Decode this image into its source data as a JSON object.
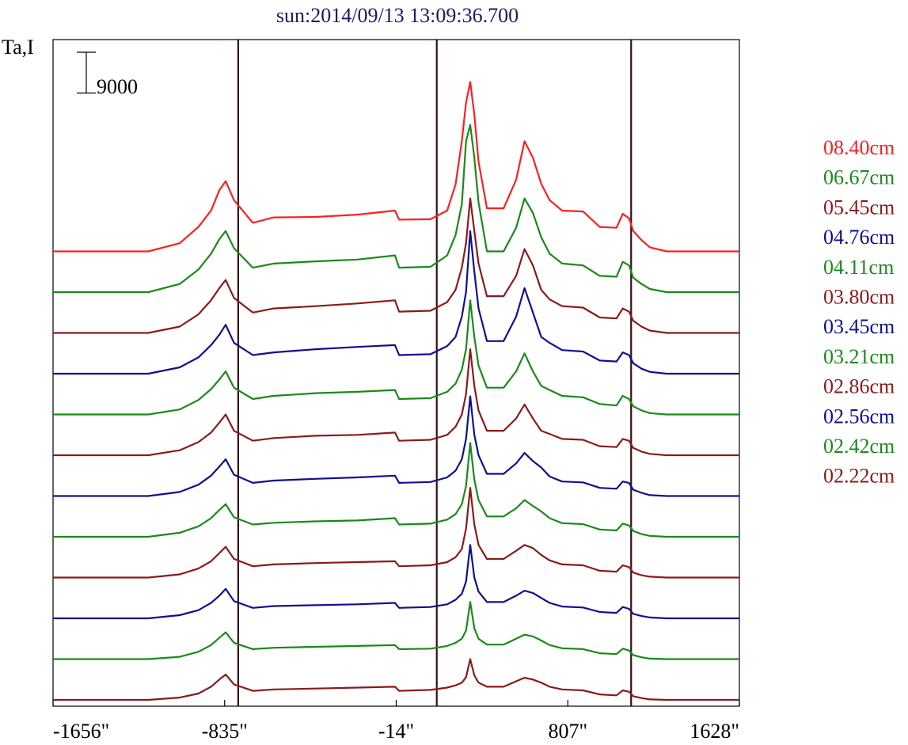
{
  "chart_data": {
    "type": "line",
    "title": "sun:2014/09/13 13:09:36.700",
    "ylabel": "Ta,I",
    "scale_bar": {
      "label": "9000",
      "value": 9000
    },
    "x_ticks": [
      {
        "value": -1656,
        "label": "-1656\""
      },
      {
        "value": -835,
        "label": "-835\""
      },
      {
        "value": -14,
        "label": "-14\""
      },
      {
        "value": 807,
        "label": "807\""
      },
      {
        "value": 1628,
        "label": "1628\""
      }
    ],
    "xlim": [
      -1656,
      1628
    ],
    "vertical_markers": [
      -770,
      180,
      1110
    ],
    "profile_x": [
      -1656,
      -1200,
      -1050,
      -960,
      -900,
      -860,
      -830,
      -790,
      -700,
      -600,
      -400,
      -200,
      -20,
      0,
      150,
      230,
      270,
      300,
      320,
      340,
      360,
      380,
      420,
      500,
      560,
      600,
      640,
      680,
      720,
      780,
      880,
      960,
      1040,
      1070,
      1100,
      1120,
      1160,
      1200,
      1280,
      1400,
      1628
    ],
    "series_offsets_step": 9000,
    "series": [
      {
        "name": "08.40cm",
        "color": "#ff1f1f",
        "y": [
          0,
          0,
          1800,
          5400,
          9000,
          13500,
          15500,
          11300,
          6300,
          7500,
          7600,
          8100,
          9000,
          7000,
          7100,
          9000,
          14800,
          24300,
          32800,
          37400,
          30200,
          19800,
          9500,
          9500,
          15800,
          24300,
          20700,
          14900,
          11300,
          9000,
          8800,
          5400,
          5200,
          8300,
          7300,
          4500,
          2500,
          900,
          0,
          0,
          0
        ]
      },
      {
        "name": "06.67cm",
        "color": "#1a8a1a",
        "y": [
          0,
          0,
          1800,
          5000,
          8500,
          11700,
          13500,
          9700,
          5400,
          6300,
          6800,
          7200,
          8100,
          5400,
          5600,
          8100,
          12600,
          19400,
          33300,
          36900,
          29700,
          19800,
          9000,
          9000,
          14200,
          20700,
          17500,
          12100,
          8500,
          6300,
          5900,
          3600,
          3400,
          6700,
          5900,
          3200,
          1800,
          700,
          0,
          0,
          0
        ]
      },
      {
        "name": "05.45cm",
        "color": "#8b1a1a",
        "y": [
          0,
          0,
          1400,
          4100,
          7200,
          9900,
          11700,
          7700,
          4500,
          5400,
          5900,
          6500,
          7200,
          4700,
          4900,
          6800,
          9500,
          14400,
          19800,
          29700,
          22500,
          15300,
          8100,
          8100,
          12600,
          18500,
          14900,
          9500,
          7400,
          5900,
          5600,
          3400,
          3200,
          5400,
          4700,
          2700,
          1400,
          500,
          0,
          0,
          0
        ]
      },
      {
        "name": "04.76cm",
        "color": "#101090",
        "y": [
          0,
          0,
          1400,
          3600,
          6300,
          8600,
          10800,
          6800,
          4100,
          4700,
          5400,
          5900,
          6300,
          4100,
          4300,
          6100,
          8100,
          12600,
          18000,
          31500,
          22500,
          14400,
          7200,
          7200,
          12600,
          18900,
          13500,
          8100,
          6800,
          5200,
          4900,
          2900,
          2700,
          4700,
          4100,
          2300,
          1100,
          400,
          0,
          0,
          0
        ]
      },
      {
        "name": "04.11cm",
        "color": "#1a8a1a",
        "y": [
          0,
          0,
          1100,
          3200,
          5600,
          7700,
          9500,
          5900,
          3400,
          4100,
          4700,
          5000,
          5400,
          3400,
          3600,
          5000,
          6800,
          9900,
          14400,
          25200,
          17100,
          10800,
          5900,
          5900,
          9500,
          13500,
          9500,
          6300,
          5400,
          4100,
          3800,
          2300,
          2000,
          4100,
          3400,
          1800,
          900,
          300,
          0,
          0,
          0
        ]
      },
      {
        "name": "03.80cm",
        "color": "#8b1a1a",
        "y": [
          0,
          0,
          1100,
          2900,
          5000,
          7200,
          9000,
          5400,
          3200,
          3800,
          4300,
          4500,
          5000,
          3200,
          3400,
          4500,
          6300,
          9000,
          13500,
          23400,
          15300,
          9900,
          5400,
          5400,
          8100,
          11200,
          8100,
          5400,
          4700,
          3600,
          3400,
          2000,
          1800,
          3600,
          3200,
          1600,
          800,
          300,
          0,
          0,
          0
        ]
      },
      {
        "name": "03.45cm",
        "color": "#101090",
        "y": [
          0,
          0,
          900,
          2500,
          4500,
          6500,
          8100,
          4700,
          2900,
          3400,
          3800,
          4100,
          4500,
          2900,
          3100,
          4100,
          5600,
          8100,
          12600,
          22000,
          13500,
          9000,
          4900,
          4900,
          7200,
          9500,
          7700,
          6300,
          4300,
          3200,
          3000,
          1800,
          1600,
          3200,
          2900,
          1400,
          700,
          200,
          0,
          0,
          0
        ]
      },
      {
        "name": "03.21cm",
        "color": "#1a8a1a",
        "y": [
          0,
          0,
          900,
          2300,
          4100,
          5900,
          7200,
          4300,
          2700,
          3100,
          3400,
          3600,
          4100,
          2700,
          2900,
          3800,
          5000,
          7200,
          11200,
          20700,
          12600,
          8100,
          4500,
          4500,
          6300,
          8100,
          6800,
          5600,
          4100,
          3000,
          2800,
          1600,
          1400,
          2900,
          2500,
          1300,
          600,
          200,
          0,
          0,
          0
        ]
      },
      {
        "name": "02.86cm",
        "color": "#8b1a1a",
        "y": [
          0,
          0,
          700,
          2000,
          3600,
          5400,
          6800,
          4100,
          2500,
          2900,
          3200,
          3400,
          3600,
          2500,
          2700,
          3400,
          4500,
          6300,
          10800,
          19800,
          11700,
          7200,
          4100,
          4100,
          5900,
          7200,
          6500,
          5000,
          3800,
          2900,
          2700,
          1500,
          1300,
          2700,
          2300,
          1100,
          500,
          200,
          0,
          0,
          0
        ]
      },
      {
        "name": "02.56cm",
        "color": "#101090",
        "y": [
          0,
          0,
          700,
          1800,
          3400,
          5000,
          6500,
          3800,
          2300,
          2700,
          2900,
          3100,
          3400,
          2300,
          2500,
          3100,
          4100,
          5400,
          8100,
          16200,
          9000,
          5900,
          3600,
          3600,
          5000,
          6100,
          5600,
          4500,
          3400,
          2600,
          2400,
          1400,
          1200,
          2500,
          2100,
          1000,
          500,
          200,
          0,
          0,
          0
        ]
      },
      {
        "name": "02.42cm",
        "color": "#1a8a1a",
        "y": [
          0,
          0,
          500,
          1600,
          3100,
          4700,
          5900,
          3600,
          2200,
          2500,
          2700,
          2900,
          3100,
          2200,
          2300,
          2900,
          3600,
          4500,
          6300,
          12600,
          6800,
          4500,
          3200,
          3200,
          4500,
          5400,
          5000,
          4100,
          3100,
          2400,
          2200,
          1300,
          1100,
          2300,
          1900,
          900,
          400,
          100,
          0,
          0,
          0
        ]
      },
      {
        "name": "02.22cm",
        "color": "#8b1a1a",
        "y": [
          0,
          0,
          500,
          1400,
          2900,
          4500,
          5600,
          3400,
          2000,
          2300,
          2500,
          2700,
          2900,
          2000,
          2200,
          2700,
          3200,
          3800,
          5000,
          9000,
          5400,
          3800,
          2900,
          2900,
          4100,
          4900,
          4500,
          3800,
          2900,
          2300,
          2100,
          1200,
          1000,
          2100,
          1800,
          800,
          400,
          100,
          0,
          0,
          0
        ]
      }
    ]
  }
}
